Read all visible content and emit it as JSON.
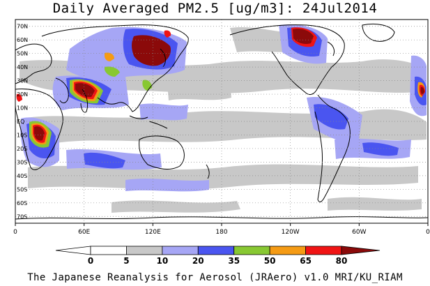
{
  "title": "Daily Averaged PM2.5 [ug/m3]: 24Jul2014",
  "footer": "The Japanese Reanalysis for Aerosol (JRAero) v1.0 MRI/KU_RIAM",
  "map": {
    "lat_labels": [
      "70N",
      "60N",
      "50N",
      "40N",
      "30N",
      "20N",
      "10N",
      "EQ",
      "10S",
      "20S",
      "30S",
      "40S",
      "50S",
      "60S",
      "70S"
    ],
    "lon_labels": [
      "0",
      "60E",
      "120E",
      "180",
      "120W",
      "60W",
      "0"
    ]
  },
  "legend": {
    "ticks": [
      "0",
      "5",
      "10",
      "20",
      "35",
      "50",
      "65",
      "80"
    ],
    "colors": [
      "#ffffff",
      "#c8c8c8",
      "#a6a6f5",
      "#4a55f0",
      "#88c832",
      "#f59b14",
      "#f01414",
      "#8b0a0a"
    ]
  }
}
